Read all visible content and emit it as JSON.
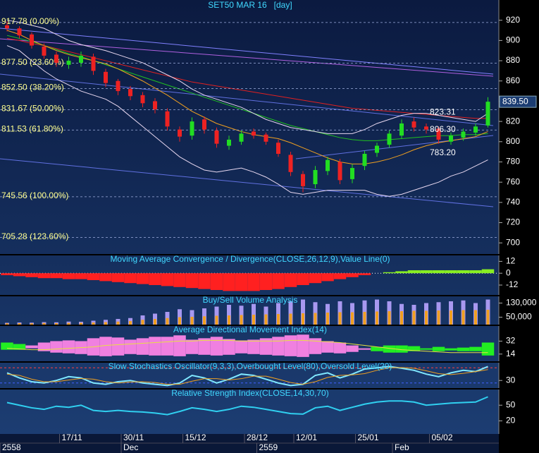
{
  "chart_data": [
    {
      "type": "candlestick",
      "title": "SET50 MAR 16   [day]",
      "categories": [
        null,
        null,
        null,
        null,
        null,
        "17/11",
        null,
        null,
        null,
        null,
        "30/11",
        null,
        null,
        null,
        null,
        "15/12",
        null,
        null,
        null,
        null,
        "28/12",
        null,
        null,
        null,
        "12/01",
        null,
        null,
        null,
        null,
        "25/01",
        null,
        null,
        null,
        null,
        null,
        "05/02",
        null,
        null,
        null,
        null
      ],
      "periods": [
        "2558",
        null,
        null,
        null,
        null,
        null,
        null,
        null,
        null,
        null,
        "Dec",
        null,
        null,
        null,
        null,
        null,
        null,
        null,
        null,
        null,
        null,
        "2559",
        null,
        null,
        null,
        null,
        null,
        null,
        null,
        null,
        null,
        null,
        "Feb",
        null,
        null,
        null,
        null,
        null,
        null,
        null
      ],
      "open": [
        915,
        912,
        906,
        894,
        886,
        876,
        878,
        884,
        869,
        860,
        852,
        846,
        840,
        830,
        812,
        806,
        822,
        811,
        796,
        800,
        810,
        807,
        799,
        787,
        768,
        758,
        771,
        780,
        763,
        776,
        789,
        797,
        806,
        820,
        815,
        813,
        800,
        804,
        809,
        816
      ],
      "high": [
        919,
        914,
        908,
        897,
        889,
        884,
        889,
        887,
        872,
        862,
        855,
        849,
        843,
        833,
        815,
        824,
        825,
        814,
        806,
        811,
        813,
        809,
        802,
        790,
        771,
        776,
        785,
        783,
        778,
        791,
        799,
        811,
        822,
        824,
        818,
        815,
        809,
        813,
        818,
        844
      ],
      "low": [
        909,
        902,
        892,
        882,
        874,
        872,
        874,
        866,
        854,
        846,
        841,
        834,
        828,
        811,
        800,
        802,
        808,
        794,
        792,
        797,
        803,
        797,
        785,
        766,
        750,
        754,
        767,
        758,
        759,
        772,
        785,
        794,
        803,
        810,
        808,
        798,
        797,
        801,
        806,
        814
      ],
      "close": [
        912,
        905,
        895,
        885,
        878,
        880,
        885,
        870,
        858,
        850,
        845,
        838,
        832,
        815,
        805,
        820,
        812,
        798,
        802,
        808,
        806,
        800,
        788,
        770,
        756,
        772,
        782,
        762,
        774,
        788,
        796,
        808,
        818,
        814,
        812,
        802,
        806,
        810,
        815,
        839.5
      ],
      "up_color": "#22dd22",
      "down_color": "#ee2222",
      "series": [
        {
          "color": "#e02020",
          "values": [
            902,
            900,
            897,
            895,
            892,
            889,
            886,
            883,
            880,
            877,
            874,
            871,
            868,
            865,
            862,
            859,
            857,
            855,
            853,
            851,
            849,
            847,
            845,
            843,
            841,
            839,
            837,
            835,
            833,
            832,
            831,
            830,
            829,
            828,
            827,
            826,
            825,
            824,
            823,
            823
          ]
        },
        {
          "color": "#20c020",
          "values": [
            905,
            902,
            899,
            895,
            891,
            887,
            884,
            880,
            876,
            872,
            868,
            864,
            860,
            856,
            852,
            848,
            844,
            840,
            836,
            832,
            828,
            824,
            820,
            816,
            813,
            810,
            807,
            804,
            802,
            801,
            801,
            802,
            803,
            804,
            805,
            806,
            806,
            807,
            807,
            808
          ]
        },
        {
          "color": "#f0a020",
          "values": [
            910,
            906,
            900,
            895,
            890,
            886,
            883,
            880,
            877,
            872,
            866,
            860,
            853,
            846,
            838,
            830,
            824,
            818,
            814,
            810,
            807,
            805,
            803,
            799,
            794,
            789,
            784,
            780,
            778,
            778,
            780,
            783,
            787,
            792,
            796,
            799,
            801,
            803,
            805,
            810
          ]
        },
        {
          "color": "#e8d8f0",
          "values": [
            920,
            918,
            915,
            912,
            906,
            900,
            896,
            893,
            890,
            886,
            882,
            878,
            872,
            866,
            860,
            852,
            846,
            842,
            838,
            834,
            828,
            822,
            818,
            814,
            812,
            810,
            808,
            808,
            808,
            812,
            818,
            822,
            826,
            828,
            828,
            826,
            824,
            822,
            820,
            828
          ]
        },
        {
          "color": "#e8d8f0",
          "values": [
            895,
            890,
            880,
            870,
            862,
            856,
            850,
            846,
            842,
            835,
            825,
            815,
            805,
            795,
            785,
            778,
            772,
            770,
            772,
            774,
            770,
            765,
            758,
            750,
            748,
            750,
            752,
            752,
            752,
            752,
            748,
            746,
            748,
            752,
            756,
            760,
            766,
            770,
            776,
            782
          ]
        }
      ],
      "fib_levels": [
        {
          "value": 917.78,
          "label": "917.78 (0.00%)"
        },
        {
          "value": 877.5,
          "label": "877.50 (23.60%)"
        },
        {
          "value": 852.5,
          "label": "852.50 (38.20%)"
        },
        {
          "value": 831.67,
          "label": "831.67 (50.00%)"
        },
        {
          "value": 811.53,
          "label": "811.53 (61.80%)"
        },
        {
          "value": 745.56,
          "label": "745.56 (100.00%)"
        },
        {
          "value": 705.28,
          "label": "705.28 (123.60%)"
        }
      ],
      "price_labels": [
        823.31,
        {
          "value": 806.3,
          "label": "806.30"
        },
        {
          "value": 783.2,
          "label": "783.20"
        }
      ],
      "last_price": {
        "value": 839.5,
        "label": "839.50"
      },
      "ylim": [
        689,
        940
      ],
      "yticks": [
        700,
        720,
        740,
        760,
        780,
        800,
        820,
        840,
        860,
        880,
        900,
        920
      ]
    },
    {
      "type": "histogram",
      "title": "Moving Average Convergence / Divergence(CLOSE,26,12,9),Value Line(0)",
      "values": [
        -2,
        -3,
        -4,
        -5,
        -5,
        -6,
        -6,
        -7,
        -8,
        -9,
        -10,
        -11,
        -12,
        -13,
        -14,
        -15,
        -16,
        -17,
        -18,
        -18,
        -18,
        -17,
        -16,
        -14,
        -12,
        -10,
        -8,
        -6,
        -4,
        -2,
        0,
        1,
        2,
        3,
        3,
        3,
        3,
        3,
        3,
        4
      ],
      "pos_color": "#88ee22",
      "neg_color": "#ff2020",
      "value_line": 0,
      "ylim": [
        -22,
        18
      ],
      "yticks": [
        -12,
        0,
        12
      ]
    },
    {
      "type": "bar",
      "title": "Buy/Sell Volume Analysis",
      "series": [
        {
          "color": "#a898f0",
          "values": [
            18000,
            20000,
            19000,
            22000,
            21000,
            25000,
            24000,
            30000,
            35000,
            40000,
            45000,
            60000,
            70000,
            80000,
            95000,
            90000,
            100000,
            110000,
            120000,
            115000,
            125000,
            110000,
            130000,
            140000,
            150000,
            135000,
            125000,
            140000,
            130000,
            145000,
            150000,
            140000,
            125000,
            120000,
            130000,
            135000,
            140000,
            145000,
            130000,
            150000
          ]
        },
        {
          "color": "#f0a020",
          "values": [
            15000,
            16000,
            15000,
            17000,
            16000,
            18000,
            18000,
            20000,
            22000,
            25000,
            28000,
            35000,
            40000,
            45000,
            50000,
            52000,
            55000,
            58000,
            60000,
            62000,
            64000,
            66000,
            68000,
            70000,
            72000,
            74000,
            76000,
            78000,
            78000,
            80000,
            82000,
            84000,
            84000,
            86000,
            86000,
            88000,
            88000,
            90000,
            90000,
            92000
          ]
        }
      ],
      "ylim": [
        8000,
        168000
      ],
      "yticks": [
        {
          "value": 50000,
          "label": "50,000"
        },
        {
          "value": 130000,
          "label": "130,000"
        }
      ]
    },
    {
      "type": "dmi",
      "title": "Average Directional Movement Index(14)",
      "plus_di": [
        30,
        28,
        22,
        18,
        16,
        15,
        14,
        12,
        11,
        12,
        14,
        13,
        12,
        12,
        11,
        14,
        13,
        12,
        13,
        15,
        14,
        13,
        12,
        11,
        10,
        14,
        16,
        15,
        17,
        20,
        24,
        26,
        26,
        25,
        22,
        24,
        22,
        23,
        24,
        30
      ],
      "minus_di": [
        20,
        20,
        26,
        30,
        32,
        33,
        32,
        36,
        38,
        37,
        34,
        36,
        38,
        38,
        40,
        34,
        36,
        38,
        35,
        33,
        34,
        36,
        38,
        40,
        41,
        36,
        32,
        30,
        26,
        22,
        18,
        16,
        16,
        18,
        20,
        18,
        19,
        18,
        18,
        12
      ],
      "adx": [
        22,
        21,
        20,
        20,
        21,
        22,
        23,
        24,
        26,
        27,
        28,
        29,
        30,
        31,
        32,
        32,
        33,
        33,
        33,
        32,
        32,
        32,
        32,
        33,
        33,
        32,
        31,
        30,
        28,
        26,
        24,
        22,
        20,
        19,
        18,
        17,
        16,
        16,
        16,
        16
      ],
      "plus_color": "#22ee22",
      "minus_color": "#f080e0",
      "adx_color": "#e8e040",
      "ylim": [
        4,
        53
      ],
      "yticks": [
        14,
        32
      ]
    },
    {
      "type": "line",
      "title": "Slow Stochastics Oscillator(9,3,3),Overbought Level(80),Oversold Level(20)",
      "series": [
        {
          "color": "#80e8ff",
          "values": [
            60,
            40,
            25,
            20,
            30,
            45,
            40,
            20,
            15,
            25,
            30,
            20,
            15,
            10,
            20,
            50,
            40,
            20,
            35,
            55,
            50,
            35,
            20,
            10,
            15,
            50,
            60,
            40,
            55,
            75,
            80,
            85,
            78,
            70,
            55,
            45,
            60,
            70,
            65,
            85
          ]
        },
        {
          "color": "#f0a020",
          "values": [
            55,
            50,
            35,
            25,
            25,
            32,
            38,
            35,
            25,
            20,
            24,
            25,
            22,
            15,
            15,
            27,
            37,
            37,
            32,
            37,
            47,
            47,
            35,
            22,
            15,
            25,
            42,
            50,
            52,
            57,
            70,
            80,
            81,
            78,
            68,
            57,
            53,
            58,
            65,
            73
          ]
        }
      ],
      "levels": [
        80,
        20
      ],
      "ylim": [
        0,
        100
      ],
      "yticks": [
        30
      ]
    },
    {
      "type": "line",
      "title": "Relative Strength Index(CLOSE,14,30,70)",
      "series": [
        {
          "color": "#30d0f0",
          "values": [
            55,
            50,
            45,
            42,
            48,
            46,
            50,
            40,
            38,
            40,
            38,
            37,
            35,
            32,
            38,
            45,
            42,
            38,
            42,
            48,
            46,
            42,
            38,
            34,
            33,
            45,
            48,
            40,
            46,
            52,
            56,
            58,
            58,
            56,
            50,
            52,
            54,
            55,
            56,
            66
          ]
        }
      ],
      "ylim": [
        -5,
        80
      ],
      "yticks": [
        20,
        50
      ]
    }
  ]
}
